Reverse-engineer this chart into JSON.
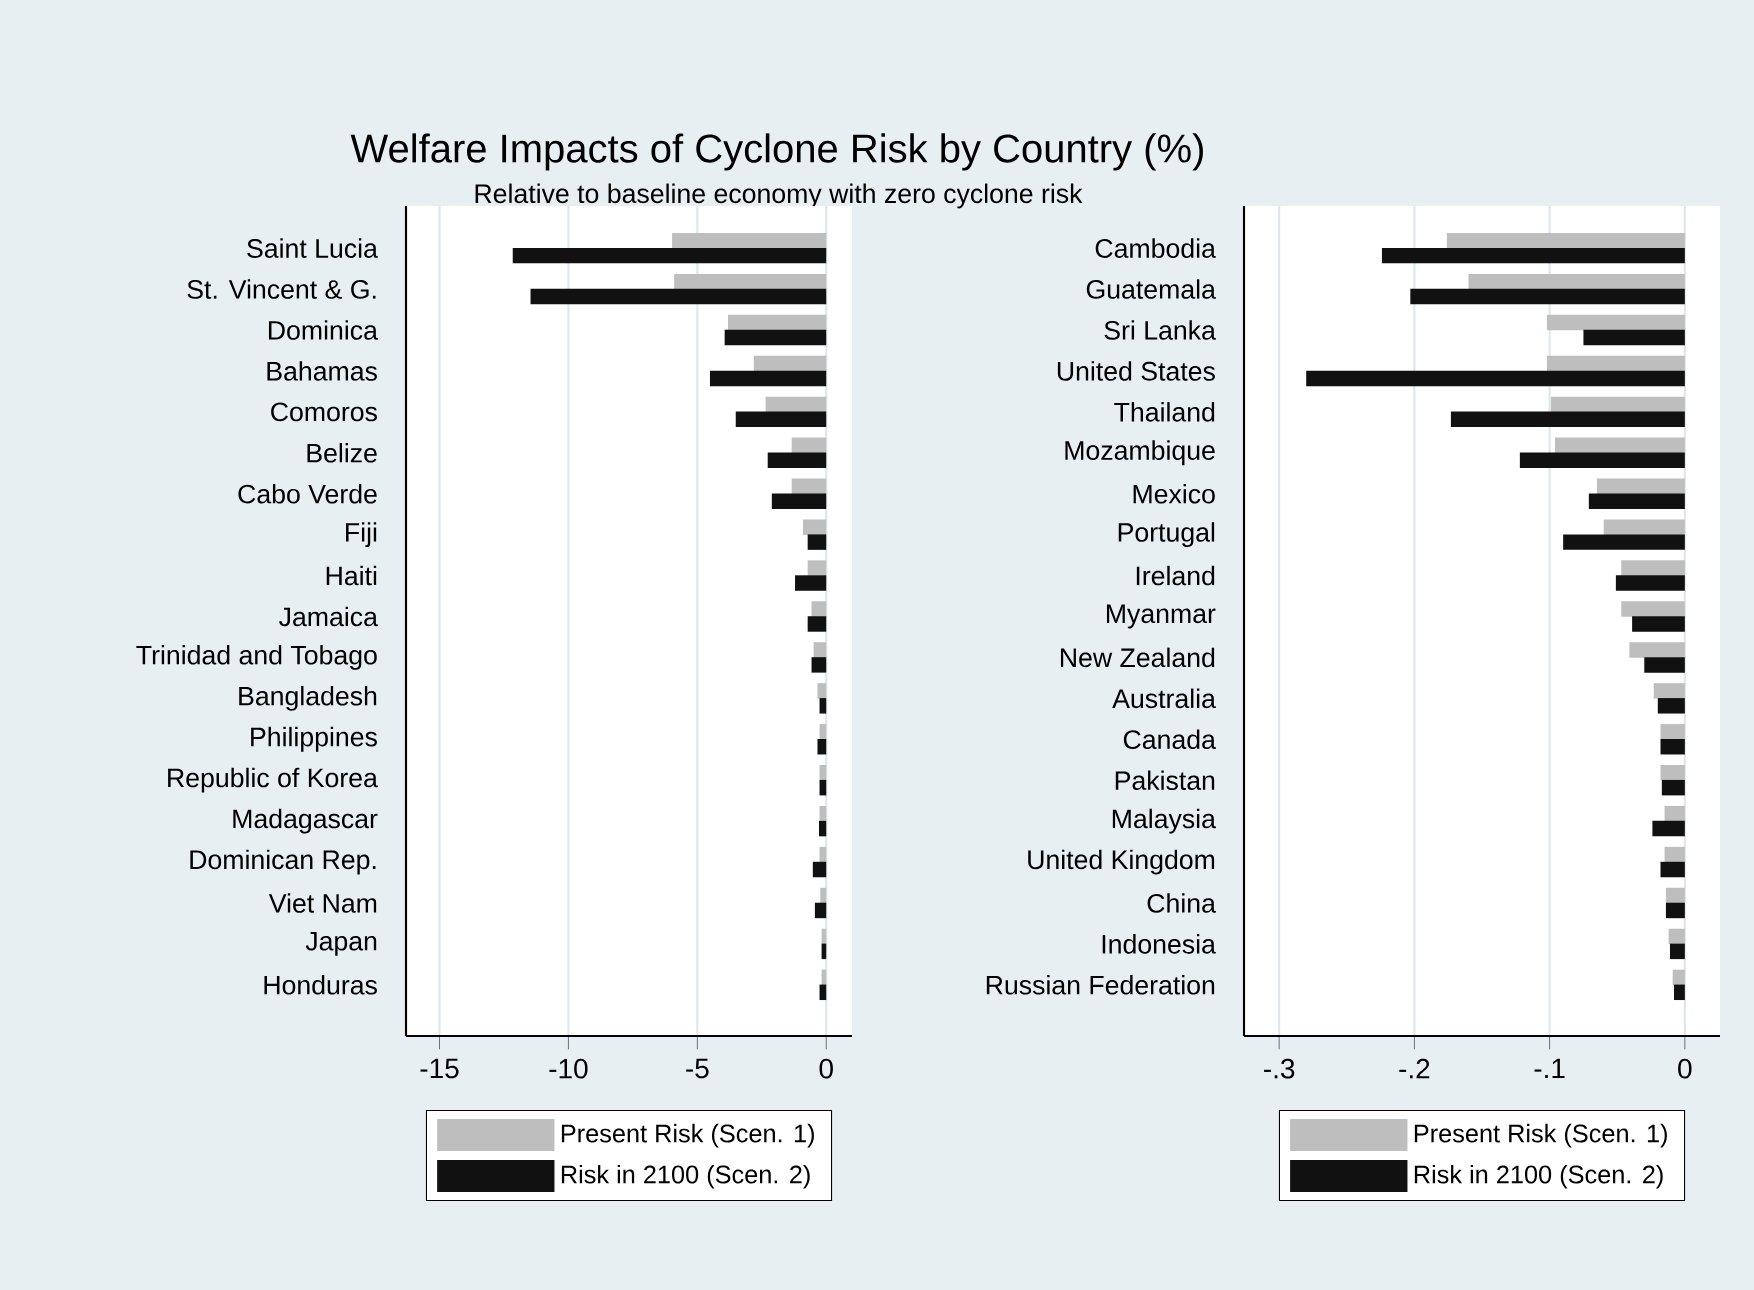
{
  "chart_data": [
    {
      "type": "bar",
      "orientation": "horizontal",
      "title": "Welfare Impacts of Cyclone Risk by Country (%)",
      "subtitle": "Relative to baseline economy with zero cyclone risk",
      "categories": [
        "Saint Lucia",
        "St. Vincent & G.",
        "Dominica",
        "Bahamas",
        "Comoros",
        "Belize",
        "Cabo Verde",
        "Fiji",
        "Haiti",
        "Jamaica",
        "Trinidad and Tobago",
        "Bangladesh",
        "Philippines",
        "Republic of Korea",
        "Madagascar",
        "Dominican Rep.",
        "Viet Nam",
        "Japan",
        "Honduras"
      ],
      "series": [
        {
          "name": "Present Risk (Scen. 1)",
          "color": "#bebebe",
          "values": [
            -5.98,
            -5.9,
            -3.81,
            -2.81,
            -2.35,
            -1.34,
            -1.34,
            -0.9,
            -0.72,
            -0.57,
            -0.49,
            -0.34,
            -0.26,
            -0.26,
            -0.26,
            -0.26,
            -0.23,
            -0.18,
            -0.18
          ]
        },
        {
          "name": "Risk in 2100 (Scen. 2)",
          "color": "#111111",
          "values": [
            -12.16,
            -11.47,
            -3.94,
            -4.51,
            -3.51,
            -2.27,
            -2.11,
            -0.72,
            -1.21,
            -0.72,
            -0.57,
            -0.26,
            -0.34,
            -0.26,
            -0.28,
            -0.52,
            -0.44,
            -0.18,
            -0.26
          ]
        }
      ],
      "xlim": [
        -16.3,
        1
      ],
      "xticks": [
        -15,
        -10,
        -5,
        0
      ],
      "grid": "x",
      "legend": "bottom"
    },
    {
      "type": "bar",
      "orientation": "horizontal",
      "categories": [
        "Cambodia",
        "Guatemala",
        "Sri Lanka",
        "United States",
        "Thailand",
        "Mozambique",
        "Mexico",
        "Portugal",
        "Ireland",
        "Myanmar",
        "New Zealand",
        "Australia",
        "Canada",
        "Pakistan",
        "Malaysia",
        "United Kingdom",
        "China",
        "Indonesia",
        "Russian Federation"
      ],
      "series": [
        {
          "name": "Present Risk (Scen. 1)",
          "color": "#bebebe",
          "values": [
            -0.176,
            -0.16,
            -0.102,
            -0.102,
            -0.099,
            -0.096,
            -0.065,
            -0.06,
            -0.047,
            -0.047,
            -0.041,
            -0.023,
            -0.018,
            -0.018,
            -0.015,
            -0.015,
            -0.014,
            -0.012,
            -0.009
          ]
        },
        {
          "name": "Risk in 2100 (Scen. 2)",
          "color": "#111111",
          "values": [
            -0.224,
            -0.203,
            -0.075,
            -0.28,
            -0.173,
            -0.122,
            -0.071,
            -0.09,
            -0.051,
            -0.039,
            -0.03,
            -0.02,
            -0.018,
            -0.017,
            -0.024,
            -0.018,
            -0.014,
            -0.011,
            -0.008
          ]
        }
      ],
      "xlim": [
        -0.326,
        0.026
      ],
      "xticks": [
        {
          "value": -0.3,
          "label": "-.3"
        },
        {
          "value": -0.2,
          "label": "-.2"
        },
        {
          "value": -0.1,
          "label": "-.1"
        },
        0
      ],
      "grid": "x",
      "legend": "bottom"
    }
  ]
}
